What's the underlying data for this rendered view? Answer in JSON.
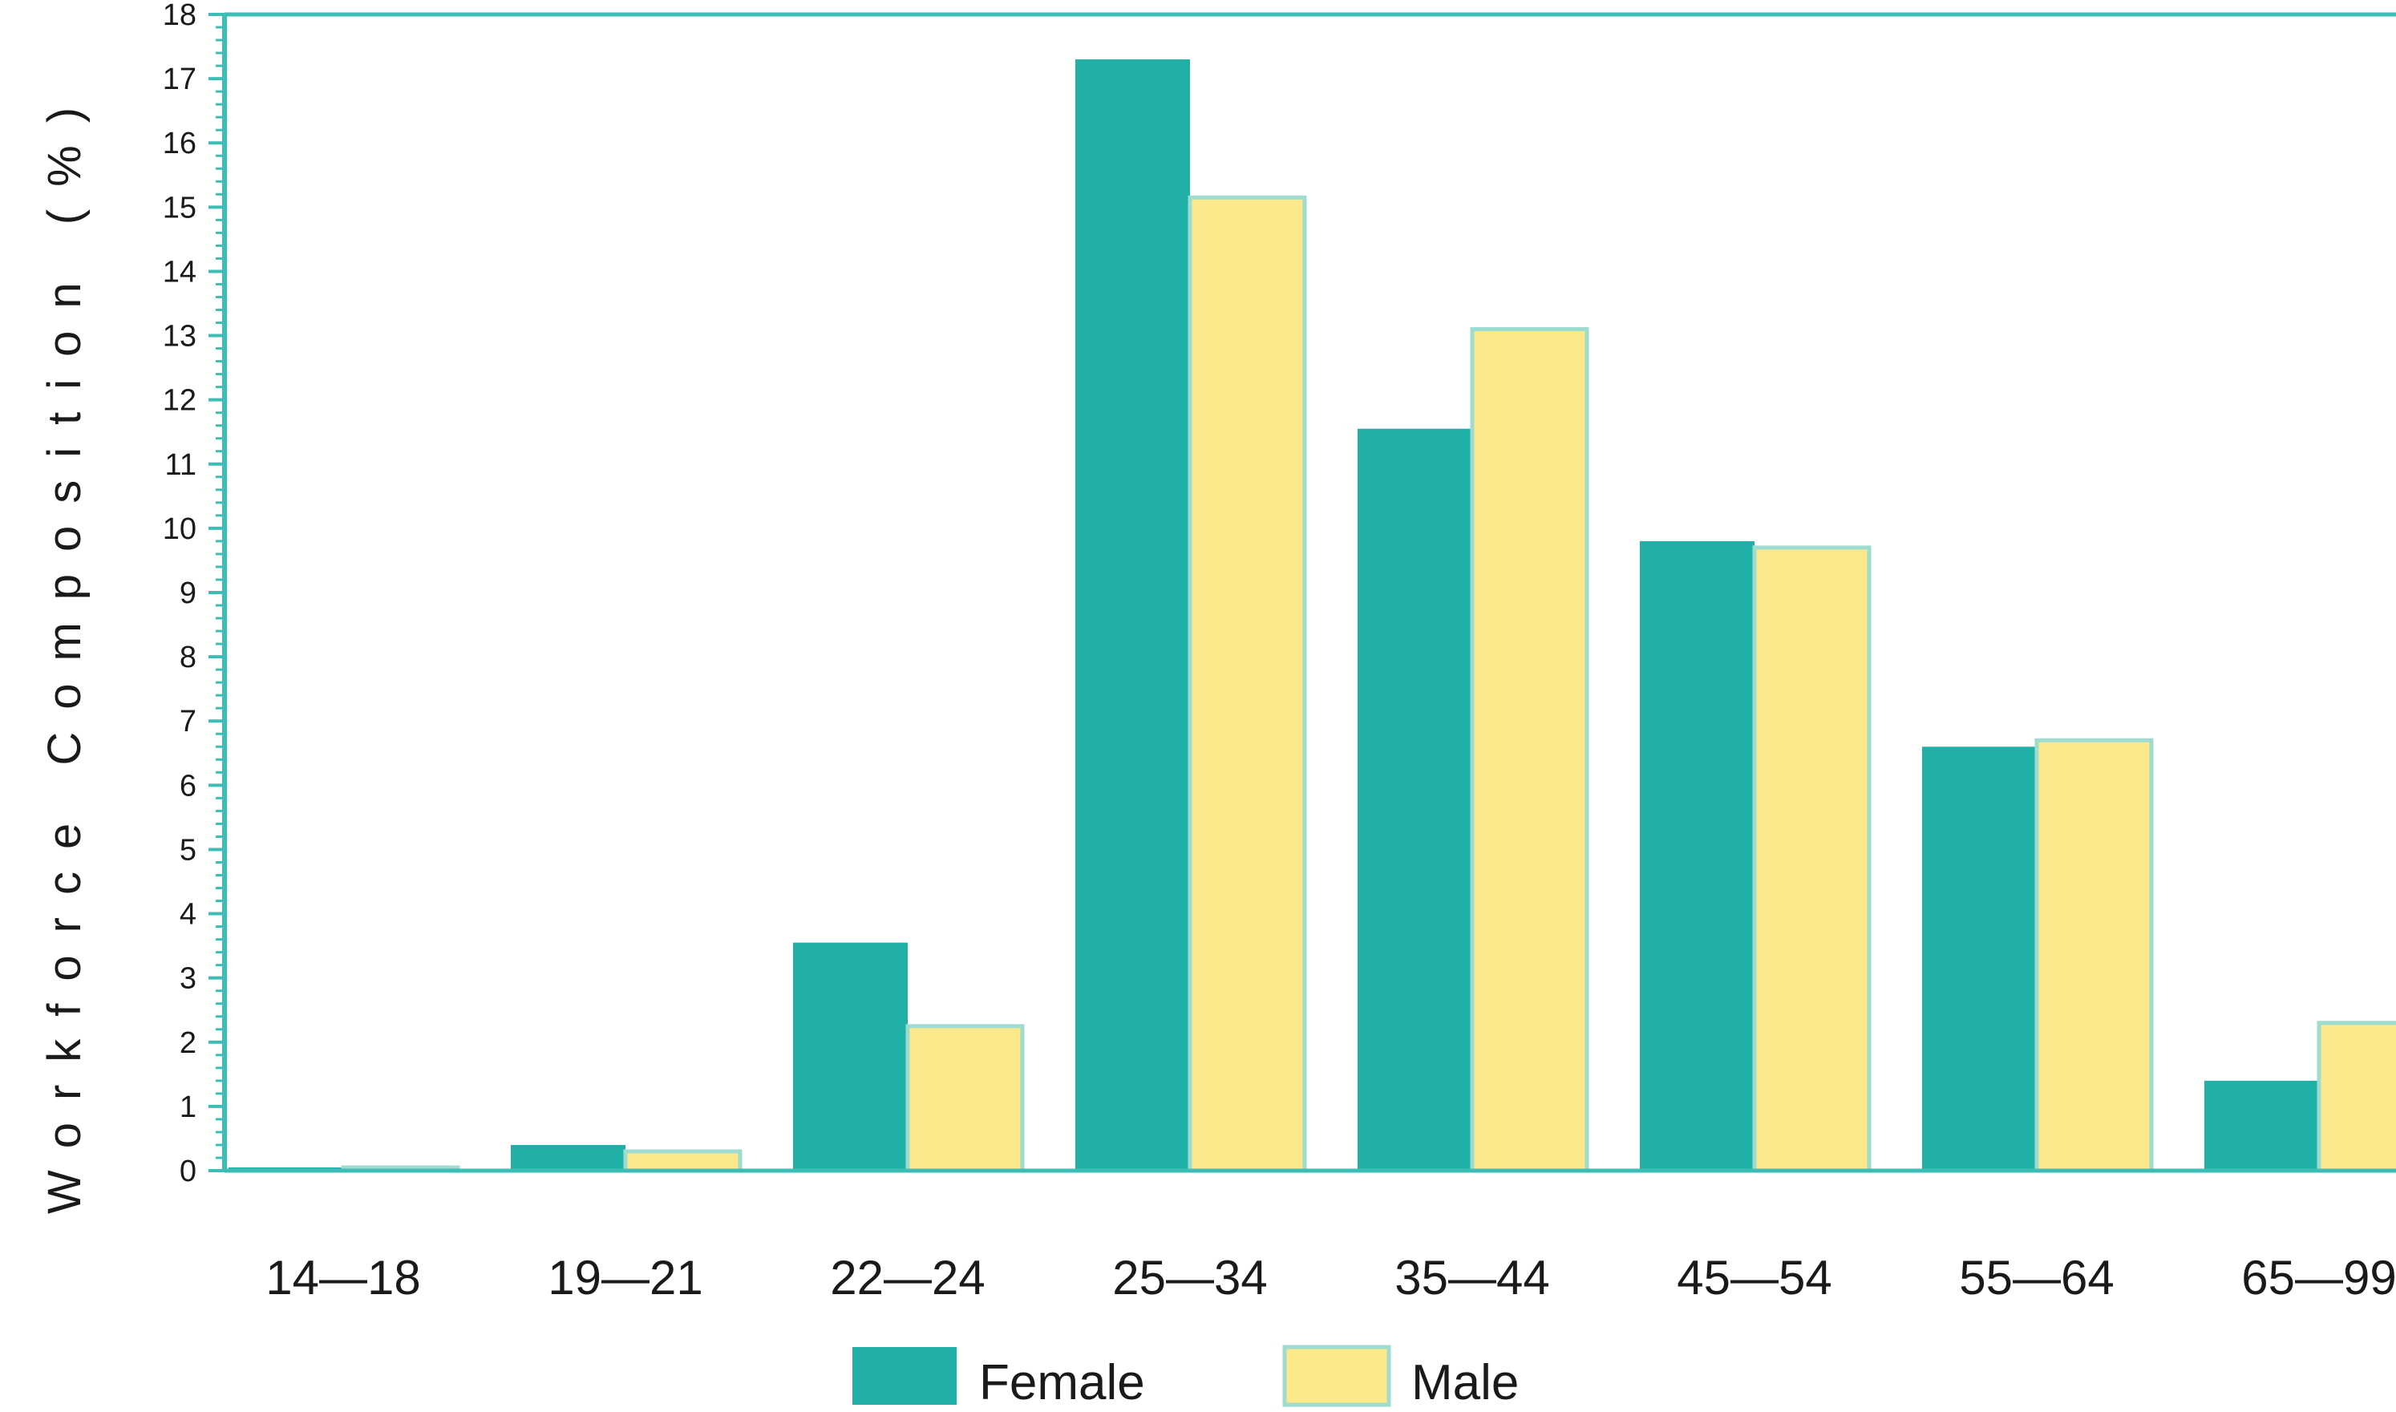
{
  "chart_data": {
    "type": "bar",
    "title": "",
    "xlabel": "",
    "ylabel": "Workforce Composition (%)",
    "ylim": [
      0,
      18
    ],
    "yticks": [
      0,
      1,
      2,
      3,
      4,
      5,
      6,
      7,
      8,
      9,
      10,
      11,
      12,
      13,
      14,
      15,
      16,
      17,
      18
    ],
    "categories": [
      "14—18",
      "19—21",
      "22—24",
      "25—34",
      "35—44",
      "45—54",
      "55—64",
      "65—99"
    ],
    "series": [
      {
        "name": "Female",
        "color": "#21b0a8",
        "values": [
          0.05,
          0.4,
          3.55,
          17.3,
          11.55,
          9.8,
          6.6,
          1.4
        ]
      },
      {
        "name": "Male",
        "color": "#fde98b",
        "edge_color": "#9fdcd0",
        "values": [
          0.05,
          0.3,
          2.25,
          15.15,
          13.1,
          9.7,
          6.7,
          2.3
        ]
      }
    ],
    "grid": false,
    "legend_position": "bottom-center",
    "axis_color": "#3dbdb5"
  }
}
